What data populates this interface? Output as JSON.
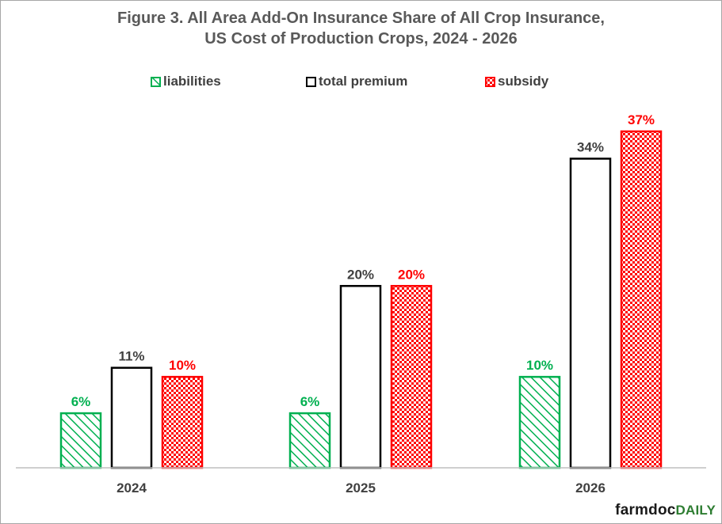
{
  "title_line1": "Figure 3. All Area Add-On Insurance Share of All Crop Insurance,",
  "title_line2": "US Cost of Production Crops, 2024 - 2026",
  "brand": {
    "farm": "farmdoc",
    "daily": "DAILY"
  },
  "colors": {
    "liabilities": "#00b050",
    "total_premium": "#000000",
    "subsidy": "#ff0000",
    "axis": "#bfbfbf"
  },
  "chart_data": {
    "type": "bar",
    "title": "Figure 3. All Area Add-On Insurance Share of All Crop Insurance, US Cost of Production Crops, 2024 - 2026",
    "categories": [
      "2024",
      "2025",
      "2026"
    ],
    "series": [
      {
        "name": "liabilities",
        "values": [
          6,
          6,
          10
        ],
        "labels": [
          "6%",
          "6%",
          "10%"
        ],
        "color": "#00b050",
        "pattern": "diagonal-hatch"
      },
      {
        "name": "total premium",
        "values": [
          11,
          20,
          34
        ],
        "labels": [
          "11%",
          "20%",
          "34%"
        ],
        "color": "#000000",
        "pattern": "outline"
      },
      {
        "name": "subsidy",
        "values": [
          10,
          20,
          37
        ],
        "labels": [
          "10%",
          "20%",
          "37%"
        ],
        "color": "#ff0000",
        "pattern": "checker"
      }
    ],
    "ylim": [
      0,
      37
    ],
    "grid": false,
    "legend": "top"
  }
}
